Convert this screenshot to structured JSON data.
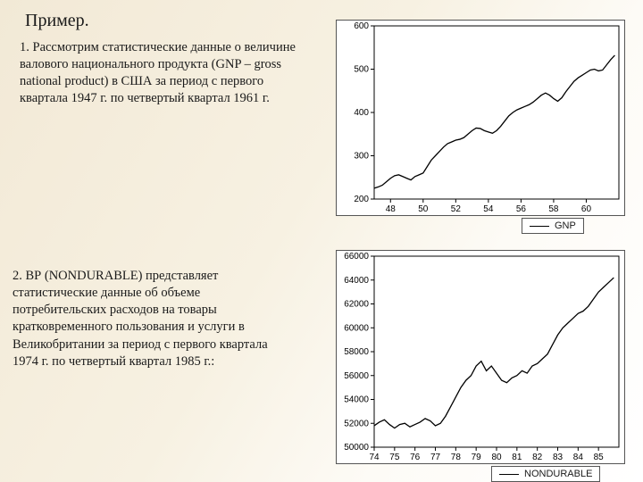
{
  "title": "Пример.",
  "para1": "1. Рассмотрим статистические данные о величине валового национального продукта (GNP – gross national product) в США за период с первого квартала 1947 г. по четвертый квартал 1961 г.",
  "para2": "2. ВР (NONDURABLE) представляет статистические данные об объеме потребительских расходов на товары кратковременного пользования и услуги в Великобритании за период с первого квартала 1974 г. по четвертый квартал 1985 г.:",
  "chart1": {
    "type": "line",
    "legend": "GNP",
    "x_ticks": [
      48,
      50,
      52,
      54,
      56,
      58,
      60
    ],
    "y_ticks": [
      200,
      300,
      400,
      500,
      600
    ],
    "xlim": [
      47,
      62
    ],
    "ylim": [
      200,
      600
    ],
    "line_color": "#000",
    "line_width": 1.3,
    "grid_color": "#d0d0d0",
    "bg": "#ffffff",
    "axis_fontsize": 10,
    "x": [
      47,
      47.25,
      47.5,
      47.75,
      48,
      48.25,
      48.5,
      48.75,
      49,
      49.25,
      49.5,
      49.75,
      50,
      50.25,
      50.5,
      50.75,
      51,
      51.25,
      51.5,
      51.75,
      52,
      52.25,
      52.5,
      52.75,
      53,
      53.25,
      53.5,
      53.75,
      54,
      54.25,
      54.5,
      54.75,
      55,
      55.25,
      55.5,
      55.75,
      56,
      56.25,
      56.5,
      56.75,
      57,
      57.25,
      57.5,
      57.75,
      58,
      58.25,
      58.5,
      58.75,
      59,
      59.25,
      59.5,
      59.75,
      60,
      60.25,
      60.5,
      60.75,
      61,
      61.25,
      61.5,
      61.75
    ],
    "y": [
      225,
      228,
      232,
      240,
      248,
      254,
      256,
      252,
      248,
      244,
      252,
      256,
      260,
      275,
      290,
      300,
      310,
      320,
      328,
      332,
      336,
      338,
      342,
      350,
      358,
      364,
      363,
      358,
      355,
      352,
      358,
      368,
      380,
      392,
      400,
      406,
      410,
      414,
      418,
      424,
      432,
      440,
      445,
      440,
      432,
      426,
      434,
      448,
      460,
      472,
      480,
      486,
      492,
      498,
      500,
      496,
      498,
      510,
      522,
      532
    ]
  },
  "chart2": {
    "type": "line",
    "legend": "NONDURABLE",
    "x_ticks": [
      74,
      75,
      76,
      77,
      78,
      79,
      80,
      81,
      82,
      83,
      84,
      85
    ],
    "y_ticks": [
      50000,
      52000,
      54000,
      56000,
      58000,
      60000,
      62000,
      64000,
      66000
    ],
    "xlim": [
      74,
      86
    ],
    "ylim": [
      50000,
      66000
    ],
    "line_color": "#000",
    "line_width": 1.3,
    "grid_color": "#d0d0d0",
    "bg": "#ffffff",
    "axis_fontsize": 10,
    "x": [
      74,
      74.25,
      74.5,
      74.75,
      75,
      75.25,
      75.5,
      75.75,
      76,
      76.25,
      76.5,
      76.75,
      77,
      77.25,
      77.5,
      77.75,
      78,
      78.25,
      78.5,
      78.75,
      79,
      79.25,
      79.5,
      79.75,
      80,
      80.25,
      80.5,
      80.75,
      81,
      81.25,
      81.5,
      81.75,
      82,
      82.25,
      82.5,
      82.75,
      83,
      83.25,
      83.5,
      83.75,
      84,
      84.25,
      84.5,
      84.75,
      85,
      85.25,
      85.5,
      85.75
    ],
    "y": [
      51800,
      52100,
      52300,
      51900,
      51600,
      51900,
      52000,
      51700,
      51900,
      52100,
      52400,
      52200,
      51800,
      52000,
      52600,
      53400,
      54200,
      55000,
      55600,
      56000,
      56800,
      57200,
      56400,
      56800,
      56200,
      55600,
      55400,
      55800,
      56000,
      56400,
      56200,
      56800,
      57000,
      57400,
      57800,
      58600,
      59400,
      60000,
      60400,
      60800,
      61200,
      61400,
      61800,
      62400,
      63000,
      63400,
      63800,
      64200
    ]
  }
}
